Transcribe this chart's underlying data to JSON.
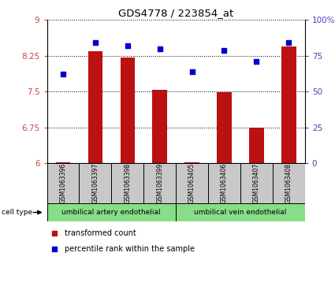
{
  "title": "GDS4778 / 223854_at",
  "samples": [
    "GSM1063396",
    "GSM1063397",
    "GSM1063398",
    "GSM1063399",
    "GSM1063405",
    "GSM1063406",
    "GSM1063407",
    "GSM1063408"
  ],
  "bar_values": [
    6.02,
    8.35,
    8.22,
    7.53,
    6.02,
    7.48,
    6.75,
    8.45
  ],
  "dot_values": [
    62,
    84,
    82,
    80,
    64,
    79,
    71,
    84
  ],
  "ylim_left": [
    6,
    9
  ],
  "ylim_right": [
    0,
    100
  ],
  "yticks_left": [
    6,
    6.75,
    7.5,
    8.25,
    9
  ],
  "ytick_labels_left": [
    "6",
    "6.75",
    "7.5",
    "8.25",
    "9"
  ],
  "yticks_right": [
    0,
    25,
    50,
    75,
    100
  ],
  "ytick_labels_right": [
    "0",
    "25",
    "50",
    "75",
    "100%"
  ],
  "bar_color": "#bb1111",
  "dot_color": "#0000cc",
  "group1_label": "umbilical artery endothelial",
  "group2_label": "umbilical vein endothelial",
  "cell_type_label": "cell type",
  "legend1": "transformed count",
  "legend2": "percentile rank within the sample",
  "tick_label_color_left": "#cc4444",
  "tick_label_color_right": "#4444bb",
  "sample_box_color": "#c8c8c8",
  "group_box_color": "#88dd88",
  "bar_width": 0.45
}
